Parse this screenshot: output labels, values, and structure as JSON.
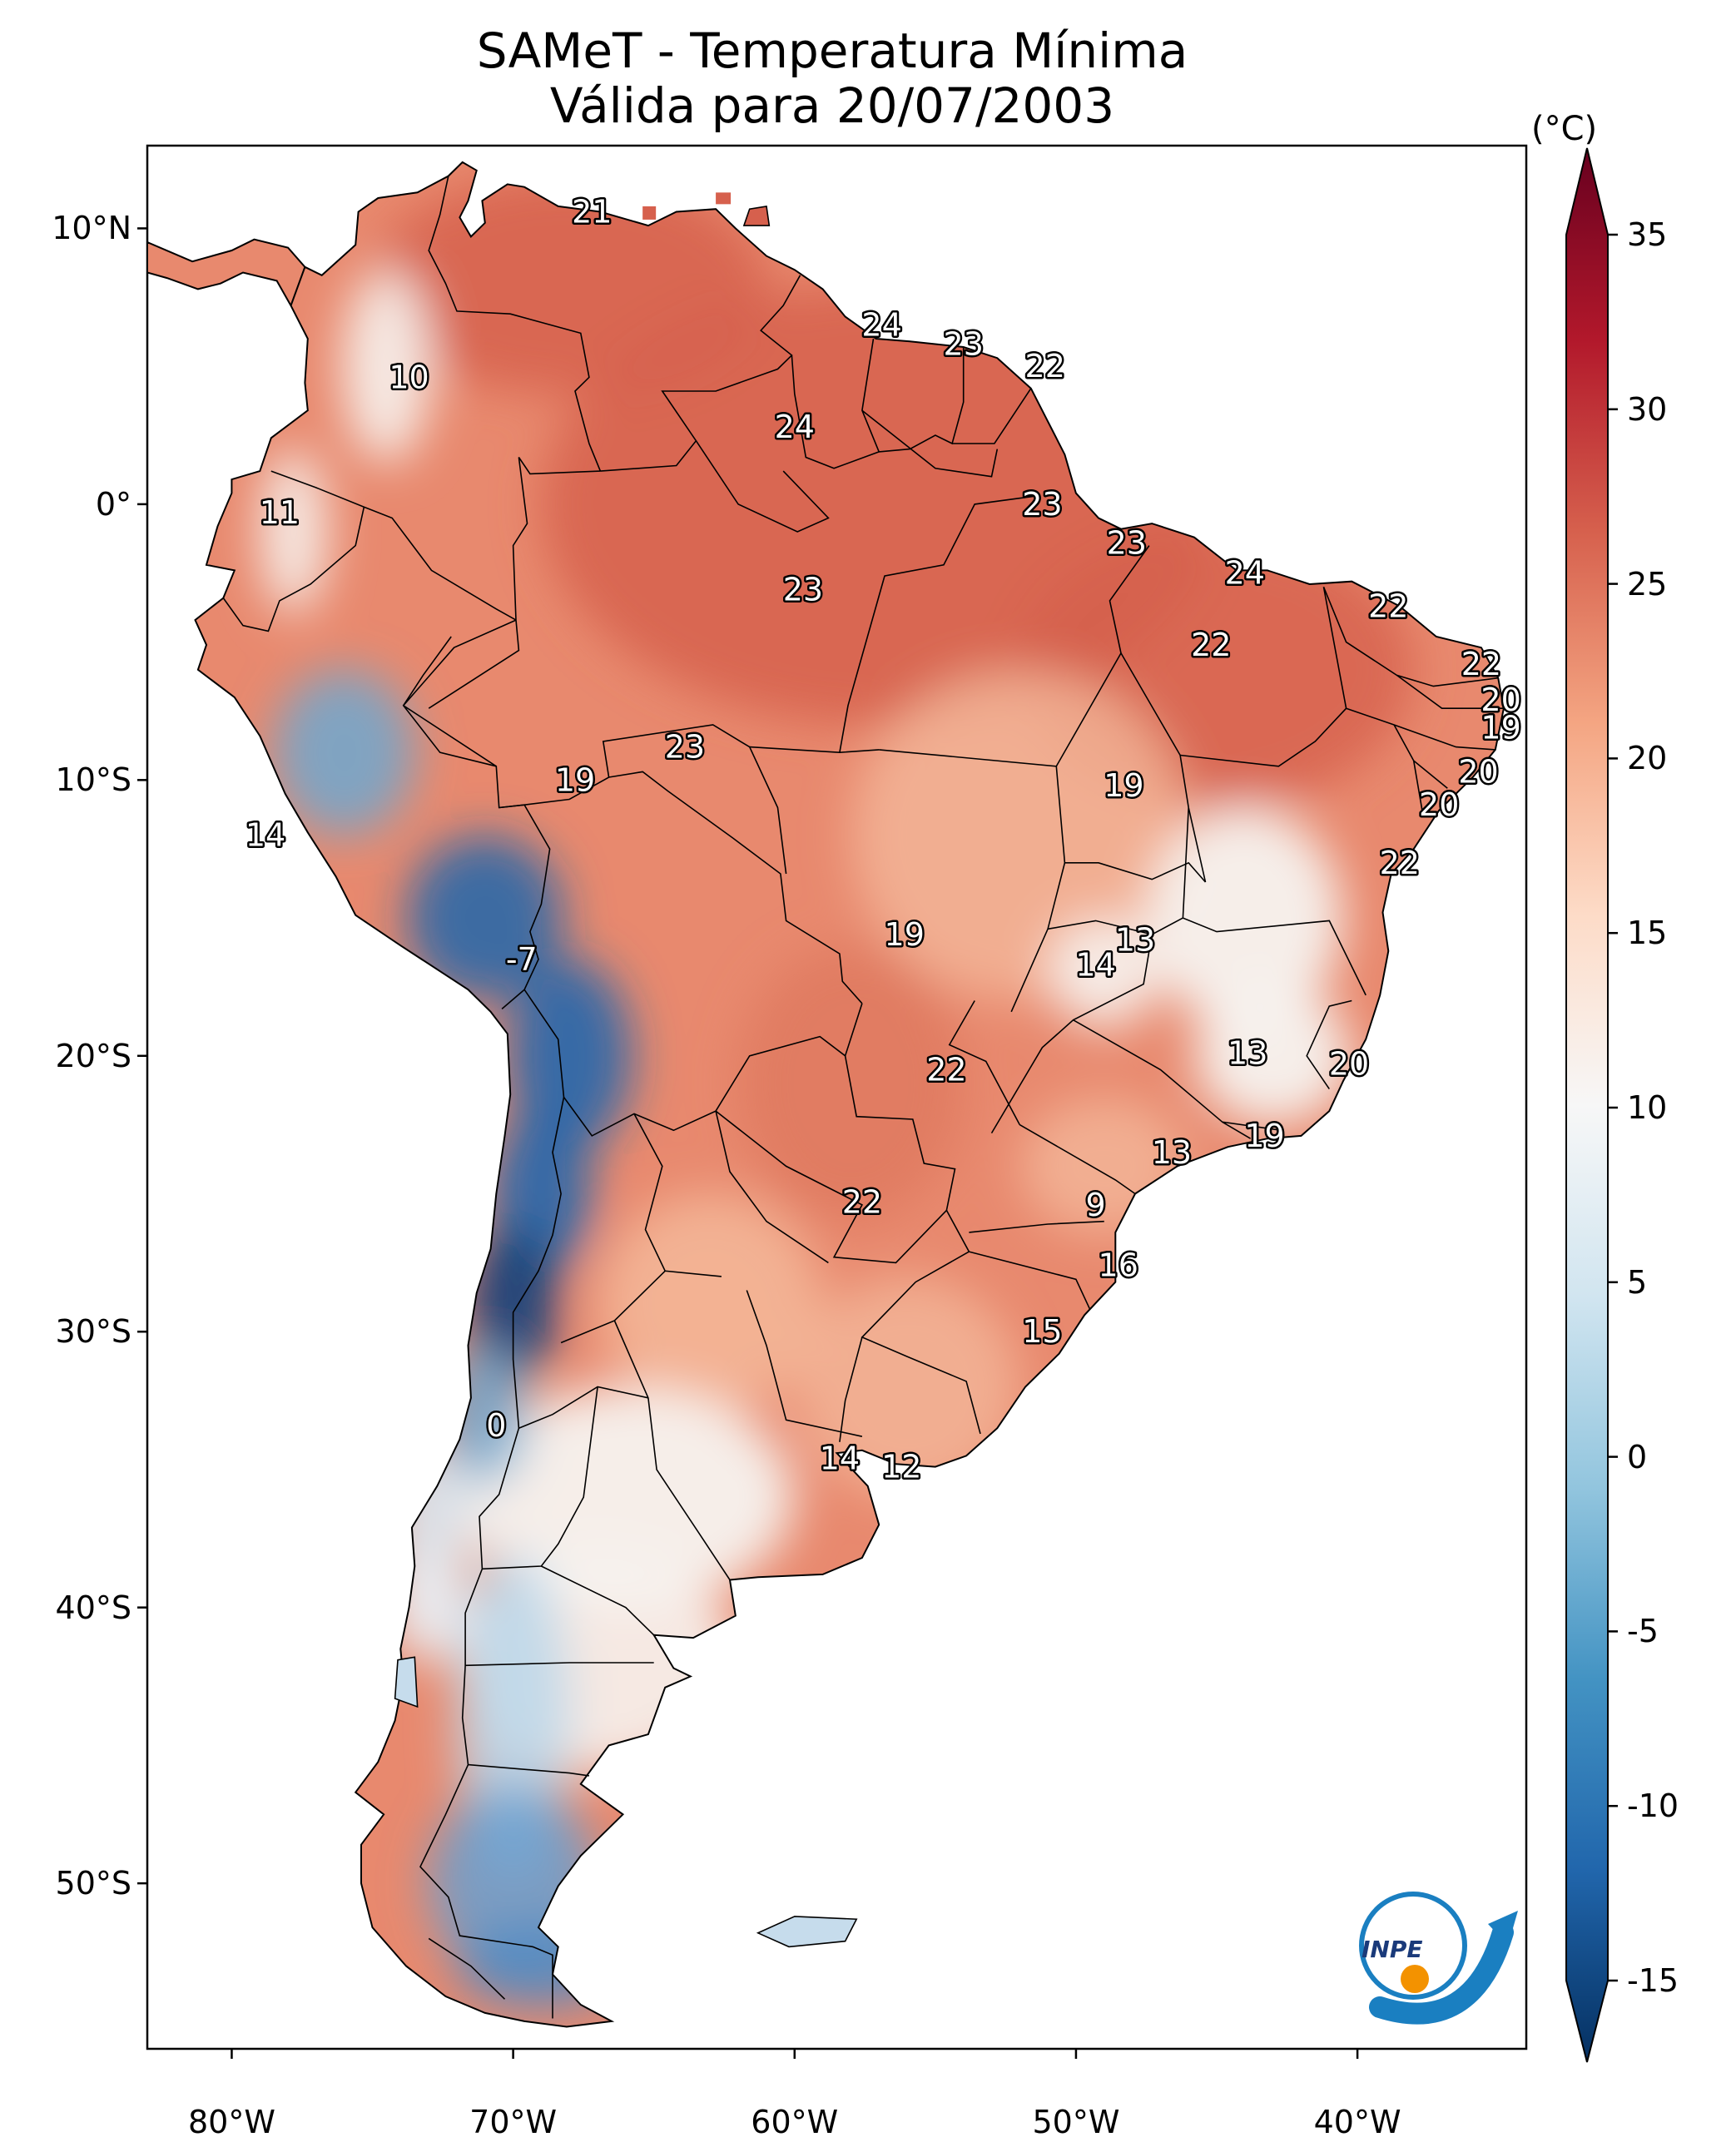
{
  "title": {
    "line1": "SAMeT - Temperatura Mínima",
    "line2": "Válida para 20/07/2003"
  },
  "map": {
    "extent_lon": [
      -83,
      -34
    ],
    "extent_lat": [
      -56,
      13
    ],
    "lat_ticks": [
      {
        "value": 10,
        "label": "10°N"
      },
      {
        "value": 0,
        "label": "0°"
      },
      {
        "value": -10,
        "label": "10°S"
      },
      {
        "value": -20,
        "label": "20°S"
      },
      {
        "value": -30,
        "label": "30°S"
      },
      {
        "value": -40,
        "label": "40°S"
      },
      {
        "value": -50,
        "label": "50°S"
      }
    ],
    "lon_ticks": [
      {
        "value": -80,
        "label": "80°W"
      },
      {
        "value": -70,
        "label": "70°W"
      },
      {
        "value": -60,
        "label": "60°W"
      },
      {
        "value": -50,
        "label": "50°W"
      },
      {
        "value": -40,
        "label": "40°W"
      }
    ],
    "station_values": [
      {
        "lon": -67.2,
        "lat": 10.6,
        "value": "21"
      },
      {
        "lon": -56.9,
        "lat": 6.5,
        "value": "24"
      },
      {
        "lon": -54.0,
        "lat": 5.8,
        "value": "23"
      },
      {
        "lon": -51.1,
        "lat": 5.0,
        "value": "22"
      },
      {
        "lon": -73.7,
        "lat": 4.6,
        "value": "10"
      },
      {
        "lon": -60.0,
        "lat": 2.8,
        "value": "24"
      },
      {
        "lon": -51.2,
        "lat": 0.0,
        "value": "23"
      },
      {
        "lon": -78.3,
        "lat": -0.3,
        "value": "11"
      },
      {
        "lon": -48.2,
        "lat": -1.4,
        "value": "23"
      },
      {
        "lon": -44.0,
        "lat": -2.5,
        "value": "24"
      },
      {
        "lon": -59.7,
        "lat": -3.1,
        "value": "23"
      },
      {
        "lon": -38.9,
        "lat": -3.7,
        "value": "22"
      },
      {
        "lon": -45.2,
        "lat": -5.1,
        "value": "22"
      },
      {
        "lon": -35.6,
        "lat": -5.8,
        "value": "22"
      },
      {
        "lon": -34.9,
        "lat": -7.1,
        "value": "20"
      },
      {
        "lon": -34.9,
        "lat": -8.1,
        "value": "19"
      },
      {
        "lon": -63.9,
        "lat": -8.8,
        "value": "23"
      },
      {
        "lon": -67.8,
        "lat": -10.0,
        "value": "19"
      },
      {
        "lon": -48.3,
        "lat": -10.2,
        "value": "19"
      },
      {
        "lon": -35.7,
        "lat": -9.7,
        "value": "20"
      },
      {
        "lon": -37.1,
        "lat": -10.9,
        "value": "20"
      },
      {
        "lon": -38.5,
        "lat": -13.0,
        "value": "22"
      },
      {
        "lon": -78.8,
        "lat": -12.0,
        "value": "14"
      },
      {
        "lon": -56.1,
        "lat": -15.6,
        "value": "19"
      },
      {
        "lon": -47.9,
        "lat": -15.8,
        "value": "13"
      },
      {
        "lon": -49.3,
        "lat": -16.7,
        "value": "14"
      },
      {
        "lon": -69.7,
        "lat": -16.5,
        "value": "-7"
      },
      {
        "lon": -43.9,
        "lat": -19.9,
        "value": "13"
      },
      {
        "lon": -40.3,
        "lat": -20.3,
        "value": "20"
      },
      {
        "lon": -54.6,
        "lat": -20.5,
        "value": "22"
      },
      {
        "lon": -43.3,
        "lat": -22.9,
        "value": "19"
      },
      {
        "lon": -46.6,
        "lat": -23.5,
        "value": "13"
      },
      {
        "lon": -57.6,
        "lat": -25.3,
        "value": "22"
      },
      {
        "lon": -49.3,
        "lat": -25.4,
        "value": "9"
      },
      {
        "lon": -48.5,
        "lat": -27.6,
        "value": "16"
      },
      {
        "lon": -51.2,
        "lat": -30.0,
        "value": "15"
      },
      {
        "lon": -70.6,
        "lat": -33.4,
        "value": "0"
      },
      {
        "lon": -58.4,
        "lat": -34.6,
        "value": "14"
      },
      {
        "lon": -56.2,
        "lat": -34.9,
        "value": "12"
      }
    ]
  },
  "colorbar": {
    "unit": "(°C)",
    "range": [
      -15,
      35
    ],
    "ticks": [
      {
        "value": 35,
        "label": "35"
      },
      {
        "value": 30,
        "label": "30"
      },
      {
        "value": 25,
        "label": "25"
      },
      {
        "value": 20,
        "label": "20"
      },
      {
        "value": 15,
        "label": "15"
      },
      {
        "value": 10,
        "label": "10"
      },
      {
        "value": 5,
        "label": "5"
      },
      {
        "value": 0,
        "label": "0"
      },
      {
        "value": -5,
        "label": "-5"
      },
      {
        "value": -10,
        "label": "-10"
      },
      {
        "value": -15,
        "label": "-15"
      }
    ],
    "colors": [
      "#053061",
      "#2166ac",
      "#4393c3",
      "#92c5de",
      "#d1e5f0",
      "#f7f7f7",
      "#fddbc7",
      "#f4a582",
      "#d6604d",
      "#b2182b",
      "#67001f"
    ]
  },
  "logo": {
    "text": "INPE",
    "icon": "inpe-logo-icon",
    "colors": {
      "blue": "#1a7fc1",
      "orange": "#f39200"
    }
  },
  "land_colors": {
    "warm": "#e07a5f",
    "hot": "#d6604d",
    "mild": "#f4b89a",
    "cool": "#f7f3f0",
    "cold": "#6fa8d0",
    "very_cold": "#2166ac"
  }
}
